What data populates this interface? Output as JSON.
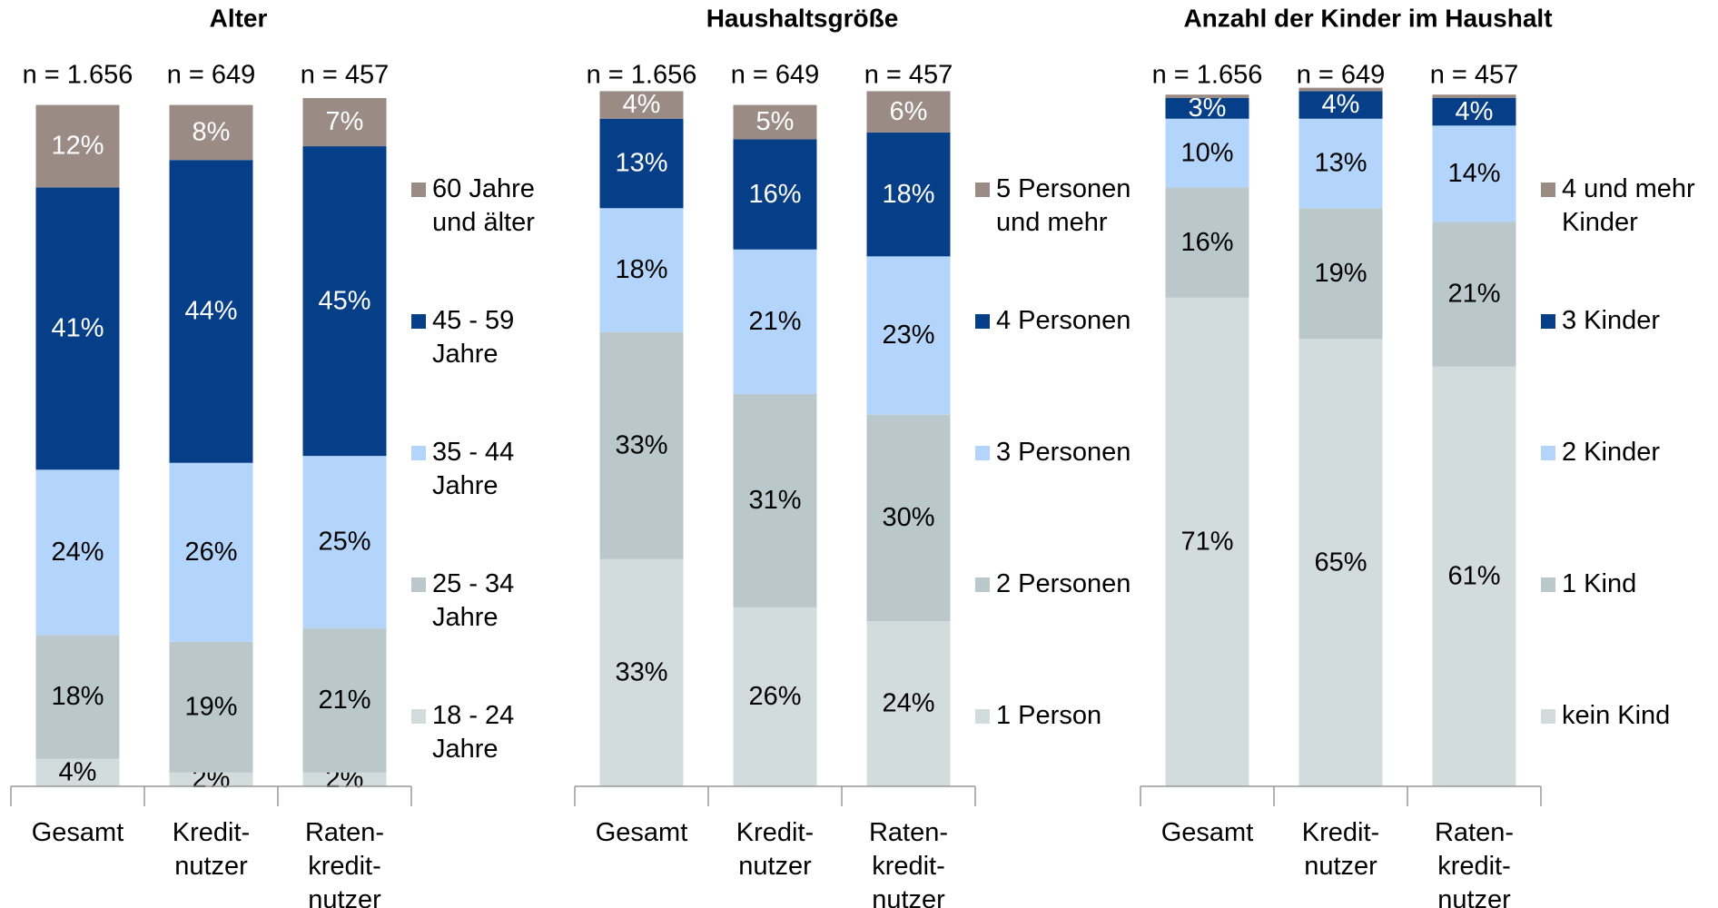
{
  "chart_data": [
    {
      "type": "bar",
      "stacked": true,
      "title": "Alter",
      "categories": [
        "Gesamt",
        "Kredit-\nnutzer",
        "Raten-\nkredit-\nnutzer"
      ],
      "sample_sizes": [
        "n = 1.656",
        "n = 649",
        "n = 457"
      ],
      "ylim": [
        0,
        100
      ],
      "series": [
        {
          "name": "18 - 24\nJahre",
          "color": "#d3dcdc",
          "values": [
            4,
            2,
            2
          ],
          "value_labels": [
            "4%",
            "2%",
            "2%"
          ]
        },
        {
          "name": "25 - 34\nJahre",
          "color": "#bac8cc",
          "values": [
            18,
            19,
            21
          ],
          "value_labels": [
            "18%",
            "19%",
            "21%"
          ]
        },
        {
          "name": "35 - 44\nJahre",
          "color": "#b3d5fb",
          "values": [
            24,
            26,
            25
          ],
          "value_labels": [
            "24%",
            "26%",
            "25%"
          ]
        },
        {
          "name": "45 - 59\nJahre",
          "color": "#063f88",
          "values": [
            41,
            44,
            45
          ],
          "value_labels": [
            "41%",
            "44%",
            "45%"
          ]
        },
        {
          "name": "60 Jahre\nund älter",
          "color": "#9a8b85",
          "values": [
            12,
            8,
            7
          ],
          "value_labels": [
            "12%",
            "8%",
            "7%"
          ]
        }
      ]
    },
    {
      "type": "bar",
      "stacked": true,
      "title": "Haushaltsgröße",
      "categories": [
        "Gesamt",
        "Kredit-\nnutzer",
        "Raten-\nkredit-\nnutzer"
      ],
      "sample_sizes": [
        "n = 1.656",
        "n = 649",
        "n = 457"
      ],
      "ylim": [
        0,
        100
      ],
      "series": [
        {
          "name": "1 Person",
          "color": "#d3dcdc",
          "values": [
            33,
            26,
            24
          ],
          "value_labels": [
            "33%",
            "26%",
            "24%"
          ]
        },
        {
          "name": "2 Personen",
          "color": "#bac8cc",
          "values": [
            33,
            31,
            30
          ],
          "value_labels": [
            "33%",
            "31%",
            "30%"
          ]
        },
        {
          "name": "3 Personen",
          "color": "#b3d5fb",
          "values": [
            18,
            21,
            23
          ],
          "value_labels": [
            "18%",
            "21%",
            "23%"
          ]
        },
        {
          "name": "4 Personen",
          "color": "#063f88",
          "values": [
            13,
            16,
            18
          ],
          "value_labels": [
            "13%",
            "16%",
            "18%"
          ]
        },
        {
          "name": "5 Personen\nund mehr",
          "color": "#9a8b85",
          "values": [
            4,
            5,
            6
          ],
          "value_labels": [
            "4%",
            "5%",
            "6%"
          ]
        }
      ]
    },
    {
      "type": "bar",
      "stacked": true,
      "title": "Anzahl der Kinder im Haushalt",
      "categories": [
        "Gesamt",
        "Kredit-\nnutzer",
        "Raten-\nkredit-\nnutzer"
      ],
      "sample_sizes": [
        "n = 1.656",
        "n = 649",
        "n = 457"
      ],
      "ylim": [
        0,
        100
      ],
      "series": [
        {
          "name": "kein Kind",
          "color": "#d3dcdc",
          "values": [
            71,
            65,
            61
          ],
          "value_labels": [
            "71%",
            "65%",
            "61%"
          ]
        },
        {
          "name": "1 Kind",
          "color": "#bac8cc",
          "values": [
            16,
            19,
            21
          ],
          "value_labels": [
            "16%",
            "19%",
            "21%"
          ]
        },
        {
          "name": "2 Kinder",
          "color": "#b3d5fb",
          "values": [
            10,
            13,
            14
          ],
          "value_labels": [
            "10%",
            "13%",
            "14%"
          ]
        },
        {
          "name": "3 Kinder",
          "color": "#063f88",
          "values": [
            3,
            4,
            4
          ],
          "value_labels": [
            "3%",
            "4%",
            "4%"
          ]
        },
        {
          "name": "4 und mehr\nKinder",
          "color": "#9a8b85",
          "values": [
            0.5,
            0.5,
            0.5
          ],
          "value_labels": [
            null,
            null,
            null
          ]
        }
      ]
    }
  ]
}
